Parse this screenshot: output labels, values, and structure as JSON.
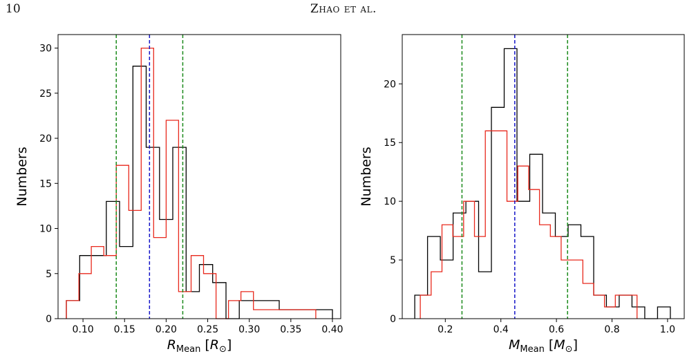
{
  "header": {
    "page_number": "10",
    "running_head": "Zhao et al."
  },
  "colors": {
    "black": "#000000",
    "red": "#e8281c",
    "blue": "#1414c8",
    "green": "#1a8a1a"
  },
  "chart_data": [
    {
      "type": "histogram",
      "ylabel": "Numbers",
      "xlabel": "R_Mean [R_⊙]",
      "xlabel_parts": {
        "sym": "R",
        "sub": "Mean",
        "unit_open": " [",
        "unit_sym": "R",
        "unit_sub": "⊙",
        "unit_close": "]"
      },
      "xlim": [
        0.07,
        0.41
      ],
      "ylim": [
        0,
        31.5
      ],
      "xticks": [
        0.1,
        0.15,
        0.2,
        0.25,
        0.3,
        0.35,
        0.4
      ],
      "xtick_labels": [
        "0.10",
        "0.15",
        "0.20",
        "0.25",
        "0.30",
        "0.35",
        "0.40"
      ],
      "yticks": [
        0,
        5,
        10,
        15,
        20,
        25,
        30
      ],
      "ytick_labels": [
        "0",
        "5",
        "10",
        "15",
        "20",
        "25",
        "30"
      ],
      "series": [
        {
          "color": "black",
          "edges": [
            0.08,
            0.096,
            0.112,
            0.128,
            0.144,
            0.16,
            0.176,
            0.192,
            0.208,
            0.224,
            0.24,
            0.256,
            0.272,
            0.288,
            0.304,
            0.32,
            0.336,
            0.352,
            0.368,
            0.384,
            0.4
          ],
          "counts": [
            2,
            7,
            7,
            13,
            8,
            28,
            19,
            11,
            19,
            3,
            6,
            4,
            0,
            2,
            2,
            2,
            1,
            1,
            1,
            1
          ]
        },
        {
          "color": "red",
          "edges": [
            0.08,
            0.095,
            0.11,
            0.125,
            0.14,
            0.155,
            0.17,
            0.185,
            0.2,
            0.215,
            0.23,
            0.245,
            0.26,
            0.275,
            0.29,
            0.305,
            0.32,
            0.335,
            0.35,
            0.365,
            0.38
          ],
          "counts": [
            2,
            5,
            8,
            7,
            17,
            12,
            30,
            9,
            22,
            3,
            7,
            5,
            0,
            2,
            3,
            1,
            1,
            1,
            1,
            1
          ]
        }
      ],
      "vlines": [
        {
          "x": 0.14,
          "color": "green"
        },
        {
          "x": 0.18,
          "color": "blue"
        },
        {
          "x": 0.22,
          "color": "green"
        }
      ]
    },
    {
      "type": "histogram",
      "ylabel": "Numbers",
      "xlabel": "M_Mean [M_⊙]",
      "xlabel_parts": {
        "sym": "M",
        "sub": "Mean",
        "unit_open": " [",
        "unit_sym": "M",
        "unit_sub": "⊙",
        "unit_close": "]"
      },
      "xlim": [
        0.045,
        1.06
      ],
      "ylim": [
        0,
        24.2
      ],
      "xticks": [
        0.2,
        0.4,
        0.6,
        0.8,
        1.0
      ],
      "xtick_labels": [
        "0.2",
        "0.4",
        "0.6",
        "0.8",
        "1.0"
      ],
      "yticks": [
        0,
        5,
        10,
        15,
        20
      ],
      "yticks_labels_note": "",
      "ytick_labels": [
        "0",
        "5",
        "10",
        "15",
        "20"
      ],
      "series": [
        {
          "color": "black",
          "edges": [
            0.09,
            0.136,
            0.182,
            0.228,
            0.274,
            0.32,
            0.366,
            0.412,
            0.458,
            0.504,
            0.55,
            0.596,
            0.642,
            0.688,
            0.734,
            0.78,
            0.826,
            0.872,
            0.918,
            0.964,
            1.01
          ],
          "counts": [
            2,
            7,
            5,
            9,
            10,
            4,
            18,
            23,
            10,
            14,
            9,
            7,
            8,
            7,
            2,
            1,
            2,
            1,
            0,
            1
          ]
        },
        {
          "color": "red",
          "edges": [
            0.11,
            0.149,
            0.188,
            0.227,
            0.266,
            0.305,
            0.344,
            0.383,
            0.422,
            0.461,
            0.5,
            0.539,
            0.578,
            0.617,
            0.656,
            0.695,
            0.734,
            0.773,
            0.812,
            0.851,
            0.89
          ],
          "counts": [
            2,
            4,
            8,
            7,
            10,
            7,
            16,
            16,
            10,
            13,
            11,
            8,
            7,
            5,
            5,
            3,
            2,
            1,
            2,
            2
          ]
        }
      ],
      "vlines": [
        {
          "x": 0.26,
          "color": "green"
        },
        {
          "x": 0.45,
          "color": "blue"
        },
        {
          "x": 0.64,
          "color": "green"
        }
      ]
    }
  ]
}
